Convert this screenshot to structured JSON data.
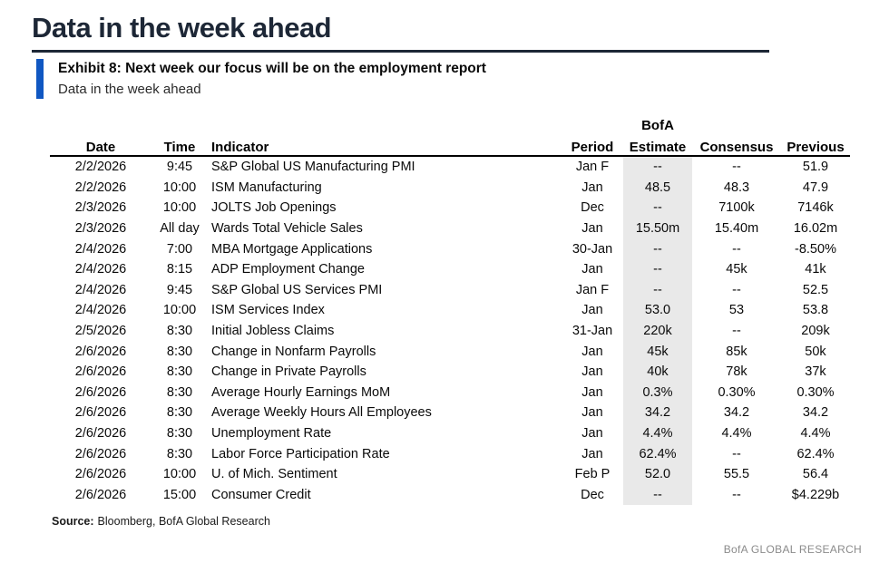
{
  "page": {
    "title": "Data in the week ahead",
    "exhibit": {
      "heading": "Exhibit 8: Next week our focus will be on the employment report",
      "subtitle": "Data in the week ahead"
    },
    "source": {
      "label": "Source:",
      "text": "Bloomberg, BofA Global Research"
    },
    "footer": {
      "brand": "BofA GLOBAL RESEARCH"
    }
  },
  "colors": {
    "title_navy": "#1d2736",
    "accent_blue": "#1057c2",
    "estimate_shade": "#e9e9e9",
    "footer_gray": "#8b8b8b",
    "header_rule": "#000000"
  },
  "table": {
    "estimate_header_top": "BofA",
    "headers": [
      "Date",
      "Time",
      "Indicator",
      "Period",
      "Estimate",
      "Consensus",
      "Previous"
    ],
    "rows": [
      [
        "2/2/2026",
        "9:45",
        "S&P Global US Manufacturing PMI",
        "Jan F",
        "--",
        "--",
        "51.9"
      ],
      [
        "2/2/2026",
        "10:00",
        "ISM Manufacturing",
        "Jan",
        "48.5",
        "48.3",
        "47.9"
      ],
      [
        "2/3/2026",
        "10:00",
        "JOLTS Job Openings",
        "Dec",
        "--",
        "7100k",
        "7146k"
      ],
      [
        "2/3/2026",
        "All day",
        "Wards Total Vehicle Sales",
        "Jan",
        "15.50m",
        "15.40m",
        "16.02m"
      ],
      [
        "2/4/2026",
        "7:00",
        "MBA Mortgage Applications",
        "30-Jan",
        "--",
        "--",
        "-8.50%"
      ],
      [
        "2/4/2026",
        "8:15",
        "ADP Employment Change",
        "Jan",
        "--",
        "45k",
        "41k"
      ],
      [
        "2/4/2026",
        "9:45",
        "S&P Global US Services PMI",
        "Jan F",
        "--",
        "--",
        "52.5"
      ],
      [
        "2/4/2026",
        "10:00",
        "ISM Services Index",
        "Jan",
        "53.0",
        "53",
        "53.8"
      ],
      [
        "2/5/2026",
        "8:30",
        "Initial Jobless Claims",
        "31-Jan",
        "220k",
        "--",
        "209k"
      ],
      [
        "2/6/2026",
        "8:30",
        "Change in Nonfarm Payrolls",
        "Jan",
        "45k",
        "85k",
        "50k"
      ],
      [
        "2/6/2026",
        "8:30",
        "Change in Private Payrolls",
        "Jan",
        "40k",
        "78k",
        "37k"
      ],
      [
        "2/6/2026",
        "8:30",
        "Average Hourly Earnings MoM",
        "Jan",
        "0.3%",
        "0.30%",
        "0.30%"
      ],
      [
        "2/6/2026",
        "8:30",
        "Average Weekly Hours All Employees",
        "Jan",
        "34.2",
        "34.2",
        "34.2"
      ],
      [
        "2/6/2026",
        "8:30",
        "Unemployment Rate",
        "Jan",
        "4.4%",
        "4.4%",
        "4.4%"
      ],
      [
        "2/6/2026",
        "8:30",
        "Labor Force Participation Rate",
        "Jan",
        "62.4%",
        "--",
        "62.4%"
      ],
      [
        "2/6/2026",
        "10:00",
        "U. of Mich. Sentiment",
        "Feb P",
        "52.0",
        "55.5",
        "56.4"
      ],
      [
        "2/6/2026",
        "15:00",
        "Consumer Credit",
        "Dec",
        "--",
        "--",
        "$4.229b"
      ]
    ]
  }
}
